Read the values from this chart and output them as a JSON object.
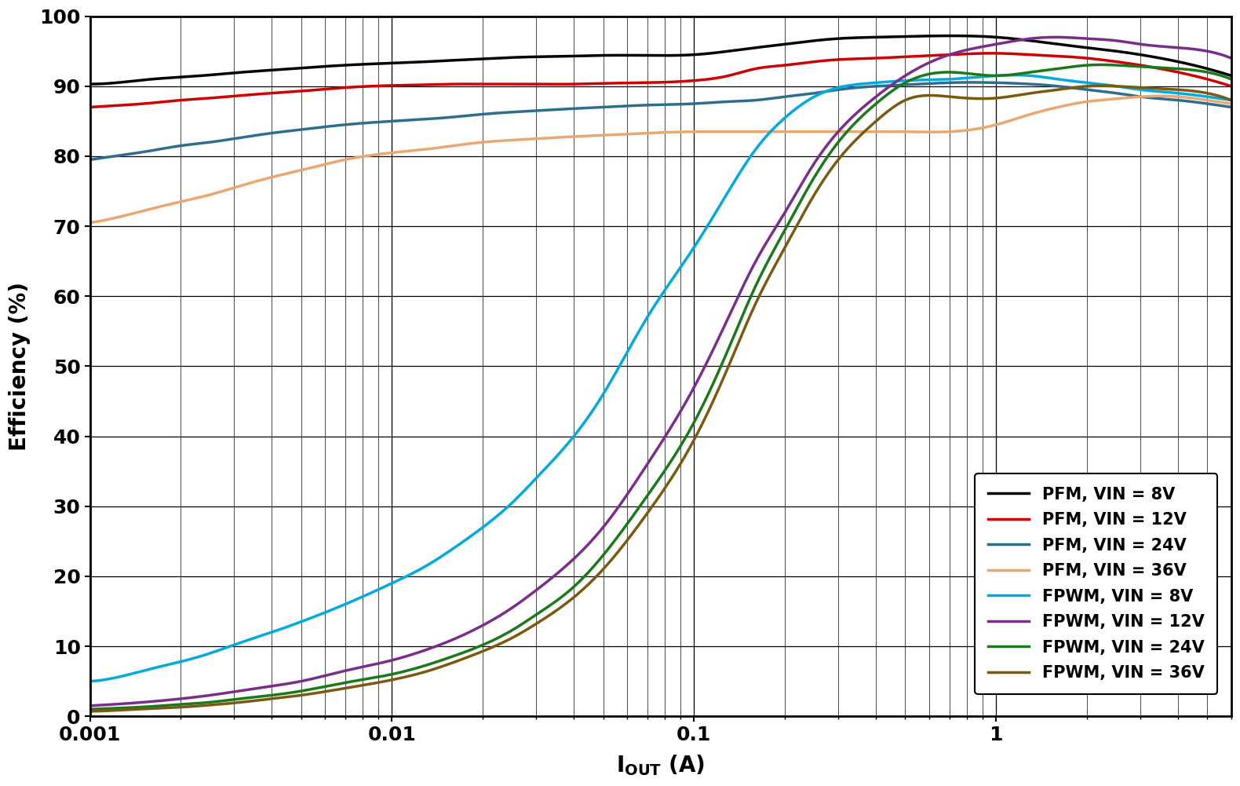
{
  "ylabel": "Efficiency (%)",
  "xlim_log": [
    -3,
    0.778
  ],
  "ylim": [
    0,
    100
  ],
  "yticks": [
    0,
    10,
    20,
    30,
    40,
    50,
    60,
    70,
    80,
    90,
    100
  ],
  "background_color": "#ffffff",
  "grid_color": "#000000",
  "series": [
    {
      "label": "PFM, VIN = 8V",
      "color": "#000000",
      "linewidth": 2.5,
      "x": [
        0.001,
        0.0013,
        0.0016,
        0.002,
        0.0025,
        0.003,
        0.004,
        0.005,
        0.007,
        0.01,
        0.013,
        0.016,
        0.02,
        0.025,
        0.03,
        0.04,
        0.05,
        0.07,
        0.1,
        0.13,
        0.16,
        0.2,
        0.25,
        0.3,
        0.4,
        0.5,
        0.7,
        1.0,
        1.3,
        1.6,
        2.0,
        2.5,
        3.0,
        4.0,
        5.0,
        6.0
      ],
      "y": [
        90.3,
        90.6,
        91.0,
        91.3,
        91.6,
        91.9,
        92.3,
        92.6,
        93.0,
        93.3,
        93.5,
        93.7,
        93.9,
        94.1,
        94.2,
        94.3,
        94.4,
        94.4,
        94.5,
        95.0,
        95.5,
        96.0,
        96.5,
        96.8,
        97.0,
        97.1,
        97.2,
        97.0,
        96.5,
        96.0,
        95.5,
        95.0,
        94.5,
        93.5,
        92.5,
        91.5
      ]
    },
    {
      "label": "PFM, VIN = 12V",
      "color": "#cc0000",
      "linewidth": 2.5,
      "x": [
        0.001,
        0.0013,
        0.0016,
        0.002,
        0.0025,
        0.003,
        0.004,
        0.005,
        0.007,
        0.01,
        0.013,
        0.016,
        0.02,
        0.025,
        0.03,
        0.04,
        0.05,
        0.07,
        0.1,
        0.13,
        0.16,
        0.2,
        0.25,
        0.3,
        0.4,
        0.5,
        0.7,
        1.0,
        1.3,
        1.6,
        2.0,
        2.5,
        3.0,
        4.0,
        5.0,
        6.0
      ],
      "y": [
        87.0,
        87.3,
        87.6,
        88.0,
        88.3,
        88.6,
        89.0,
        89.3,
        89.8,
        90.1,
        90.2,
        90.3,
        90.3,
        90.3,
        90.3,
        90.3,
        90.4,
        90.5,
        90.8,
        91.5,
        92.5,
        93.0,
        93.5,
        93.8,
        94.0,
        94.2,
        94.5,
        94.7,
        94.5,
        94.3,
        94.0,
        93.5,
        93.0,
        92.0,
        91.0,
        90.0
      ]
    },
    {
      "label": "PFM, VIN = 24V",
      "color": "#2e6d8e",
      "linewidth": 2.5,
      "x": [
        0.001,
        0.0013,
        0.0016,
        0.002,
        0.0025,
        0.003,
        0.004,
        0.005,
        0.007,
        0.01,
        0.013,
        0.016,
        0.02,
        0.025,
        0.03,
        0.04,
        0.05,
        0.07,
        0.1,
        0.13,
        0.16,
        0.2,
        0.25,
        0.3,
        0.4,
        0.5,
        0.7,
        1.0,
        1.3,
        1.6,
        2.0,
        2.5,
        3.0,
        4.0,
        5.0,
        6.0
      ],
      "y": [
        79.5,
        80.2,
        80.8,
        81.5,
        82.0,
        82.5,
        83.3,
        83.8,
        84.5,
        85.0,
        85.3,
        85.6,
        86.0,
        86.3,
        86.5,
        86.8,
        87.0,
        87.3,
        87.5,
        87.8,
        88.0,
        88.5,
        89.0,
        89.5,
        90.0,
        90.2,
        90.5,
        90.5,
        90.3,
        90.0,
        89.5,
        89.0,
        88.5,
        88.0,
        87.5,
        87.0
      ]
    },
    {
      "label": "PFM, VIN = 36V",
      "color": "#e8a870",
      "linewidth": 2.5,
      "x": [
        0.001,
        0.0013,
        0.0016,
        0.002,
        0.0025,
        0.003,
        0.004,
        0.005,
        0.007,
        0.01,
        0.013,
        0.016,
        0.02,
        0.025,
        0.03,
        0.04,
        0.05,
        0.07,
        0.1,
        0.13,
        0.16,
        0.2,
        0.25,
        0.3,
        0.4,
        0.5,
        0.7,
        1.0,
        1.3,
        1.6,
        2.0,
        2.5,
        3.0,
        4.0,
        5.0,
        6.0
      ],
      "y": [
        70.5,
        71.5,
        72.5,
        73.5,
        74.5,
        75.5,
        77.0,
        78.0,
        79.5,
        80.5,
        81.0,
        81.5,
        82.0,
        82.3,
        82.5,
        82.8,
        83.0,
        83.3,
        83.5,
        83.5,
        83.5,
        83.5,
        83.5,
        83.5,
        83.5,
        83.5,
        83.5,
        84.5,
        86.0,
        87.0,
        87.8,
        88.2,
        88.5,
        88.5,
        88.0,
        87.5
      ]
    },
    {
      "label": "FPWM, VIN = 8V",
      "color": "#00aadd",
      "linewidth": 2.5,
      "x": [
        0.001,
        0.0013,
        0.0016,
        0.002,
        0.0025,
        0.003,
        0.004,
        0.005,
        0.007,
        0.01,
        0.013,
        0.016,
        0.02,
        0.025,
        0.03,
        0.04,
        0.05,
        0.07,
        0.1,
        0.13,
        0.16,
        0.2,
        0.25,
        0.3,
        0.4,
        0.5,
        0.7,
        1.0,
        1.3,
        1.6,
        2.0,
        2.5,
        3.0,
        4.0,
        5.0,
        6.0
      ],
      "y": [
        5.0,
        5.8,
        6.8,
        7.8,
        9.0,
        10.2,
        12.0,
        13.5,
        16.0,
        19.0,
        21.5,
        24.0,
        27.0,
        30.5,
        34.0,
        40.0,
        46.0,
        57.0,
        67.0,
        75.0,
        81.0,
        85.5,
        88.5,
        89.8,
        90.5,
        90.8,
        91.0,
        91.5,
        91.5,
        91.0,
        90.5,
        90.0,
        89.5,
        89.0,
        88.5,
        88.0
      ]
    },
    {
      "label": "FPWM, VIN = 12V",
      "color": "#7b2d8b",
      "linewidth": 2.5,
      "x": [
        0.001,
        0.0013,
        0.0016,
        0.002,
        0.0025,
        0.003,
        0.004,
        0.005,
        0.007,
        0.01,
        0.013,
        0.016,
        0.02,
        0.025,
        0.03,
        0.04,
        0.05,
        0.07,
        0.1,
        0.13,
        0.16,
        0.2,
        0.25,
        0.3,
        0.4,
        0.5,
        0.7,
        1.0,
        1.3,
        1.6,
        2.0,
        2.5,
        3.0,
        4.0,
        5.0,
        6.0
      ],
      "y": [
        1.5,
        1.8,
        2.1,
        2.5,
        3.0,
        3.5,
        4.3,
        5.0,
        6.5,
        8.0,
        9.5,
        11.0,
        13.0,
        15.5,
        18.0,
        22.5,
        27.0,
        36.0,
        47.0,
        57.0,
        65.0,
        72.0,
        79.0,
        83.5,
        88.5,
        91.5,
        94.5,
        96.0,
        96.8,
        97.0,
        96.8,
        96.5,
        96.0,
        95.5,
        95.0,
        94.0
      ]
    },
    {
      "label": "FPWM, VIN = 24V",
      "color": "#1a7a1a",
      "linewidth": 2.5,
      "x": [
        0.001,
        0.0013,
        0.0016,
        0.002,
        0.0025,
        0.003,
        0.004,
        0.005,
        0.007,
        0.01,
        0.013,
        0.016,
        0.02,
        0.025,
        0.03,
        0.04,
        0.05,
        0.07,
        0.1,
        0.13,
        0.16,
        0.2,
        0.25,
        0.3,
        0.4,
        0.5,
        0.7,
        1.0,
        1.3,
        1.6,
        2.0,
        2.5,
        3.0,
        4.0,
        5.0,
        6.0
      ],
      "y": [
        1.0,
        1.2,
        1.4,
        1.7,
        2.0,
        2.4,
        3.0,
        3.6,
        4.8,
        6.0,
        7.3,
        8.6,
        10.2,
        12.3,
        14.5,
        18.5,
        23.0,
        31.5,
        42.0,
        52.5,
        61.5,
        69.5,
        77.0,
        82.0,
        87.5,
        90.5,
        92.0,
        91.5,
        92.0,
        92.5,
        93.0,
        93.0,
        92.8,
        92.5,
        92.0,
        91.0
      ]
    },
    {
      "label": "FPWM, VIN = 36V",
      "color": "#7a5a10",
      "linewidth": 2.5,
      "x": [
        0.001,
        0.0013,
        0.0016,
        0.002,
        0.0025,
        0.003,
        0.004,
        0.005,
        0.007,
        0.01,
        0.013,
        0.016,
        0.02,
        0.025,
        0.03,
        0.04,
        0.05,
        0.07,
        0.1,
        0.13,
        0.16,
        0.2,
        0.25,
        0.3,
        0.4,
        0.5,
        0.7,
        1.0,
        1.3,
        1.6,
        2.0,
        2.5,
        3.0,
        4.0,
        5.0,
        6.0
      ],
      "y": [
        0.7,
        0.9,
        1.1,
        1.3,
        1.6,
        1.9,
        2.5,
        3.0,
        4.0,
        5.2,
        6.4,
        7.7,
        9.3,
        11.2,
        13.2,
        17.0,
        21.0,
        29.0,
        39.5,
        50.0,
        59.0,
        67.0,
        74.5,
        79.5,
        85.0,
        88.0,
        88.5,
        88.3,
        89.0,
        89.5,
        90.0,
        90.0,
        89.8,
        89.5,
        89.0,
        88.0
      ]
    }
  ]
}
